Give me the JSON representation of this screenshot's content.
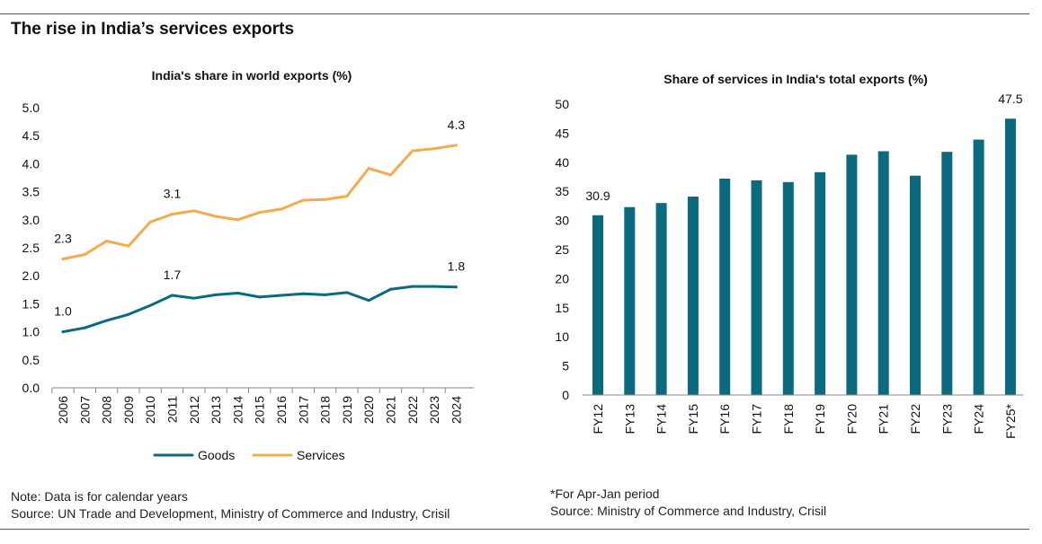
{
  "title": "The rise in India’s services exports",
  "colors": {
    "goods": "#0b6a7e",
    "services": "#f0ac4e",
    "bars": "#0b6a7e"
  },
  "notes_left": {
    "note": "Note: Data is for calendar years",
    "source": "Source: UN Trade and Development, Ministry of Commerce and Industry, Crisil"
  },
  "notes_right": {
    "note": "*For Apr-Jan period",
    "source": "Source: Ministry of Commerce and Industry, Crisil"
  },
  "chart_data": [
    {
      "type": "line",
      "title": "India's share in world exports (%)",
      "x": [
        "2006",
        "2007",
        "2008",
        "2009",
        "2010",
        "2011",
        "2012",
        "2013",
        "2014",
        "2015",
        "2016",
        "2017",
        "2018",
        "2019",
        "2020",
        "2021",
        "2022",
        "2023",
        "2024"
      ],
      "ylim": [
        0,
        5
      ],
      "yticks": [
        "0.0",
        "0.5",
        "1.0",
        "1.5",
        "2.0",
        "2.5",
        "3.0",
        "3.5",
        "4.0",
        "4.5",
        "5.0"
      ],
      "legend_position": "bottom",
      "grid": false,
      "series": [
        {
          "name": "Goods",
          "color": "#0b6a7e",
          "values": [
            1.0,
            1.07,
            1.2,
            1.31,
            1.47,
            1.65,
            1.6,
            1.66,
            1.69,
            1.62,
            1.65,
            1.68,
            1.66,
            1.7,
            1.56,
            1.76,
            1.81,
            1.81,
            1.8
          ],
          "labels": [
            {
              "index": 0,
              "text": "1.0"
            },
            {
              "index": 5,
              "text": "1.7"
            },
            {
              "index": 18,
              "text": "1.8"
            }
          ]
        },
        {
          "name": "Services",
          "color": "#f0ac4e",
          "values": [
            2.3,
            2.38,
            2.62,
            2.53,
            2.96,
            3.1,
            3.16,
            3.06,
            3.0,
            3.13,
            3.19,
            3.35,
            3.36,
            3.42,
            3.92,
            3.8,
            4.23,
            4.27,
            4.33
          ],
          "labels": [
            {
              "index": 0,
              "text": "2.3"
            },
            {
              "index": 5,
              "text": "3.1"
            },
            {
              "index": 18,
              "text": "4.3"
            }
          ]
        }
      ]
    },
    {
      "type": "bar",
      "title": "Share of services in India's total exports (%)",
      "categories": [
        "FY12",
        "FY13",
        "FY14",
        "FY15",
        "FY16",
        "FY17",
        "FY18",
        "FY19",
        "FY20",
        "FY21",
        "FY22",
        "FY23",
        "FY24",
        "FY25*"
      ],
      "values": [
        30.9,
        32.3,
        33.0,
        34.1,
        37.2,
        36.9,
        36.6,
        38.3,
        41.3,
        41.9,
        37.7,
        41.8,
        43.9,
        47.5
      ],
      "ylim": [
        0,
        50
      ],
      "yticks": [
        "0",
        "5",
        "10",
        "15",
        "20",
        "25",
        "30",
        "35",
        "40",
        "45",
        "50"
      ],
      "grid": false,
      "labels": [
        {
          "index": 0,
          "text": "30.9"
        },
        {
          "index": 13,
          "text": "47.5"
        }
      ]
    }
  ]
}
